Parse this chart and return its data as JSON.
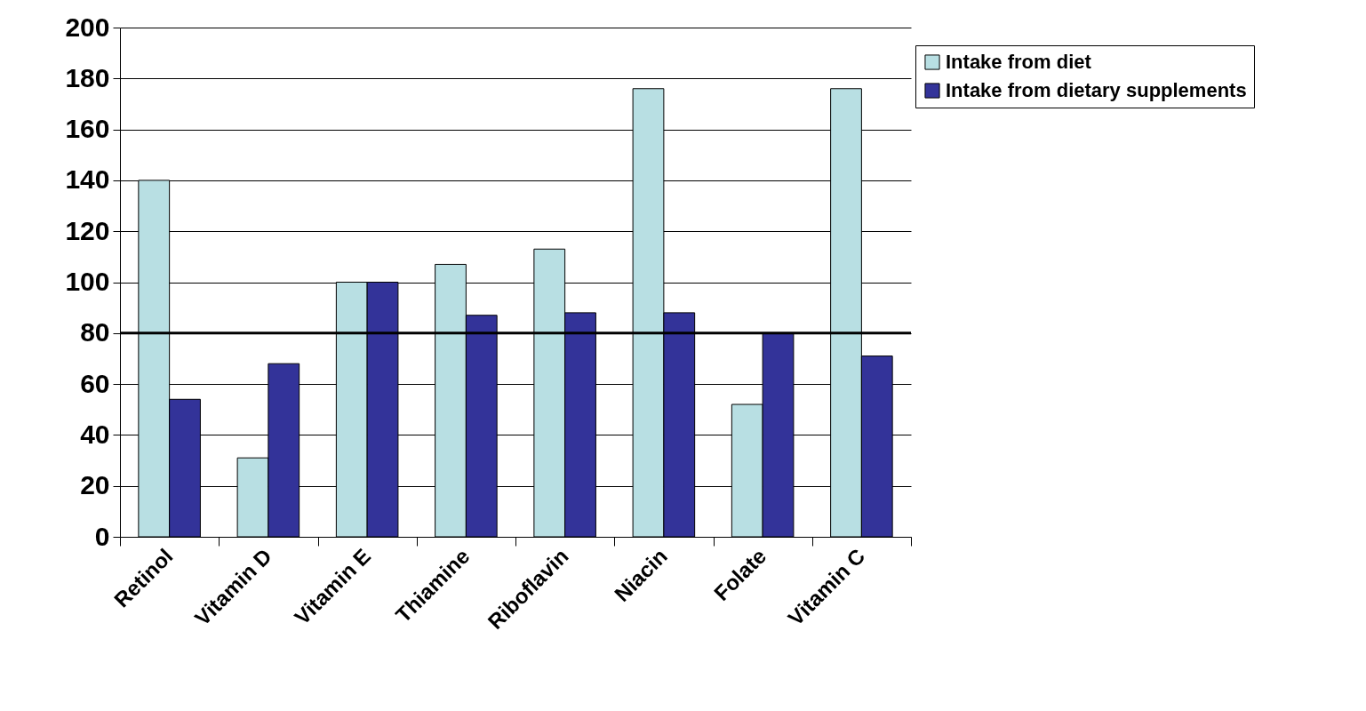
{
  "chart_data": {
    "type": "bar",
    "categories": [
      "Retinol",
      "Vitamin D",
      "Vitamin E",
      "Thiamine",
      "Riboflavin",
      "Niacin",
      "Folate",
      "Vitamin C"
    ],
    "series": [
      {
        "name": "Intake from diet",
        "color": "#b8dfe3",
        "values": [
          140,
          31,
          100,
          107,
          113,
          176,
          52,
          176
        ]
      },
      {
        "name": "Intake from dietary supplements",
        "color": "#333399",
        "values": [
          54,
          68,
          100,
          87,
          88,
          88,
          80,
          71
        ]
      }
    ],
    "ylim": [
      0,
      200
    ],
    "yticks": [
      0,
      20,
      40,
      60,
      80,
      100,
      120,
      140,
      160,
      180,
      200
    ],
    "grid": "y",
    "legend": "top right",
    "ref_lines": [
      {
        "axis": "y",
        "value": 80,
        "color": "#000000"
      }
    ]
  }
}
